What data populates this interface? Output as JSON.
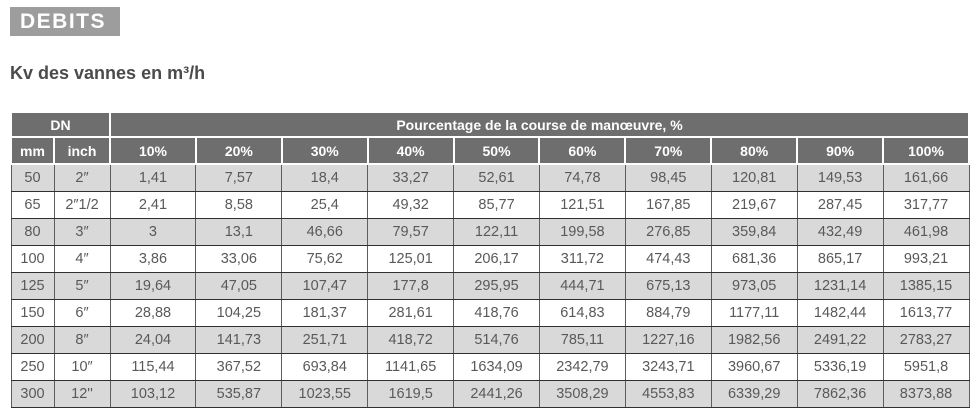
{
  "banner": {
    "label": "DEBITS"
  },
  "subtitle": "Kv des vannes en m³/h",
  "table": {
    "group_headers": {
      "dn": "DN",
      "percent": "Pourcentage de la course de manœuvre, %"
    },
    "unit_columns": [
      "mm",
      "inch"
    ],
    "percent_columns": [
      "10%",
      "20%",
      "30%",
      "40%",
      "50%",
      "60%",
      "70%",
      "80%",
      "90%",
      "100%"
    ],
    "rows": [
      {
        "mm": "50",
        "inch": "2″",
        "values": [
          "1,41",
          "7,57",
          "18,4",
          "33,27",
          "52,61",
          "74,78",
          "98,45",
          "120,81",
          "149,53",
          "161,66"
        ]
      },
      {
        "mm": "65",
        "inch": "2″1/2",
        "values": [
          "2,41",
          "8,58",
          "25,4",
          "49,32",
          "85,77",
          "121,51",
          "167,85",
          "219,67",
          "287,45",
          "317,77"
        ]
      },
      {
        "mm": "80",
        "inch": "3″",
        "values": [
          "3",
          "13,1",
          "46,66",
          "79,57",
          "122,11",
          "199,58",
          "276,85",
          "359,84",
          "432,49",
          "461,98"
        ]
      },
      {
        "mm": "100",
        "inch": "4″",
        "values": [
          "3,86",
          "33,06",
          "75,62",
          "125,01",
          "206,17",
          "311,72",
          "474,43",
          "681,36",
          "865,17",
          "993,21"
        ]
      },
      {
        "mm": "125",
        "inch": "5″",
        "values": [
          "19,64",
          "47,05",
          "107,47",
          "177,8",
          "295,95",
          "444,71",
          "675,13",
          "973,05",
          "1231,14",
          "1385,15"
        ]
      },
      {
        "mm": "150",
        "inch": "6″",
        "values": [
          "28,88",
          "104,25",
          "181,37",
          "281,61",
          "418,76",
          "614,83",
          "884,79",
          "1177,11",
          "1482,44",
          "1613,77"
        ]
      },
      {
        "mm": "200",
        "inch": "8″",
        "values": [
          "24,04",
          "141,73",
          "251,71",
          "418,72",
          "514,76",
          "785,11",
          "1227,16",
          "1982,56",
          "2491,22",
          "2783,27"
        ]
      },
      {
        "mm": "250",
        "inch": "10″",
        "values": [
          "115,44",
          "367,52",
          "693,84",
          "1141,65",
          "1634,09",
          "2342,79",
          "3243,71",
          "3960,67",
          "5336,19",
          "5951,8"
        ]
      },
      {
        "mm": "300",
        "inch": "12''",
        "values": [
          "103,12",
          "535,87",
          "1023,55",
          "1619,5",
          "2441,26",
          "3508,29",
          "4553,83",
          "6339,29",
          "7862,36",
          "8373,88"
        ]
      }
    ]
  },
  "colors": {
    "banner_bg": "#9d9d9d",
    "header_bg": "#6e6e6e",
    "row_alt_bg": "#d9d9d9",
    "data_text": "#595959",
    "header_text": "#ffffff"
  }
}
